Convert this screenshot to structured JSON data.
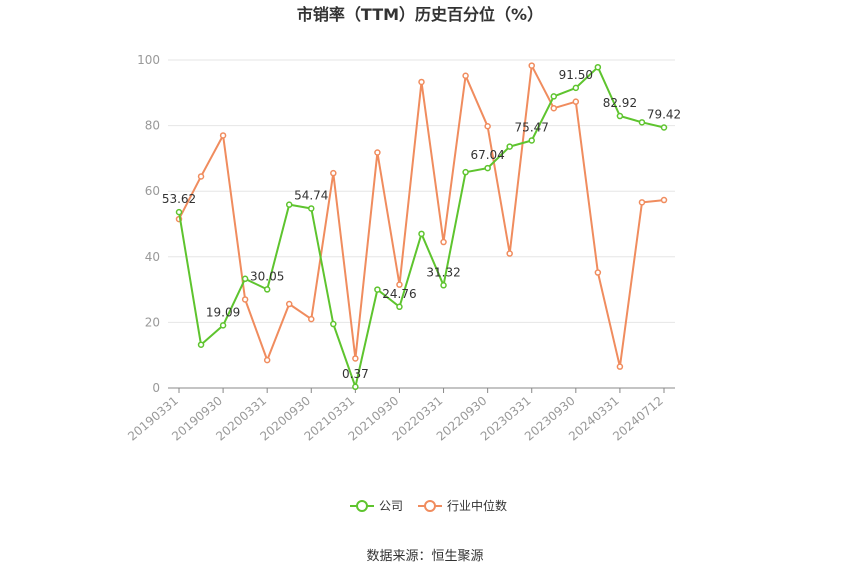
{
  "chart_data": {
    "type": "line",
    "title": "市销率（TTM）历史百分位（%）",
    "source": "数据来源：恒生聚源",
    "ylim": [
      0,
      100
    ],
    "yticks": [
      0,
      20,
      40,
      60,
      80,
      100
    ],
    "grid": true,
    "legend_position": "bottom",
    "x": [
      "20190331",
      "20190630",
      "20190930",
      "20191231",
      "20200331",
      "20200630",
      "20200930",
      "20201231",
      "20210331",
      "20210630",
      "20210930",
      "20211231",
      "20220331",
      "20220630",
      "20220930",
      "20221231",
      "20230331",
      "20230630",
      "20230930",
      "20231231",
      "20240331",
      "20240630",
      "20240712"
    ],
    "xtick_labels": [
      "20190331",
      "20190930",
      "20200331",
      "20200930",
      "20210331",
      "20210930",
      "20220331",
      "20220930",
      "20230331",
      "20230930",
      "20240331",
      "20240712"
    ],
    "series": [
      {
        "name": "公司",
        "color": "#5ec42e",
        "values": [
          53.62,
          13.2,
          19.09,
          33.3,
          30.05,
          55.9,
          54.74,
          19.5,
          0.37,
          30.0,
          24.76,
          47.0,
          31.32,
          65.8,
          67.04,
          73.6,
          75.47,
          88.9,
          91.5,
          97.8,
          82.92,
          81.0,
          79.42
        ],
        "labels": {
          "0": "53.62",
          "2": "19.09",
          "4": "30.05",
          "6": "54.74",
          "8": "0.37",
          "10": "24.76",
          "12": "31.32",
          "14": "67.04",
          "16": "75.47",
          "18": "91.50",
          "20": "82.92",
          "22": "79.42"
        }
      },
      {
        "name": "行业中位数",
        "color": "#f08c5e",
        "values": [
          51.5,
          64.5,
          77.0,
          27.0,
          8.5,
          25.6,
          21.0,
          65.5,
          9.0,
          71.8,
          31.5,
          93.3,
          44.5,
          95.2,
          79.8,
          41.0,
          98.3,
          85.3,
          87.3,
          35.2,
          6.5,
          56.6,
          57.3
        ]
      }
    ]
  }
}
